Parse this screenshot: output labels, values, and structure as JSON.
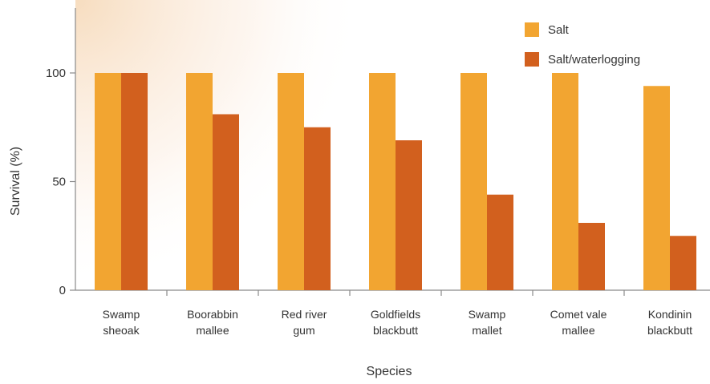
{
  "chart_data": {
    "type": "bar",
    "title": "",
    "xlabel": "Species",
    "ylabel": "Survival (%)",
    "ylim": [
      0,
      130
    ],
    "yticks": [
      0,
      50,
      100
    ],
    "grid": false,
    "legend_position": "top-right",
    "categories": [
      [
        "Swamp",
        "sheoak"
      ],
      [
        "Boorabbin",
        "mallee"
      ],
      [
        "Red river",
        "gum"
      ],
      [
        "Goldfields",
        "blackbutt"
      ],
      [
        "Swamp",
        "mallet"
      ],
      [
        "Comet vale",
        "mallee"
      ],
      [
        "Kondinin",
        "blackbutt"
      ]
    ],
    "series": [
      {
        "name": "Salt",
        "color": "#F2A531",
        "values": [
          100,
          100,
          100,
          100,
          100,
          100,
          94
        ]
      },
      {
        "name": "Salt/waterlogging",
        "color": "#D2601E",
        "values": [
          100,
          81,
          75,
          69,
          44,
          31,
          25
        ]
      }
    ]
  }
}
